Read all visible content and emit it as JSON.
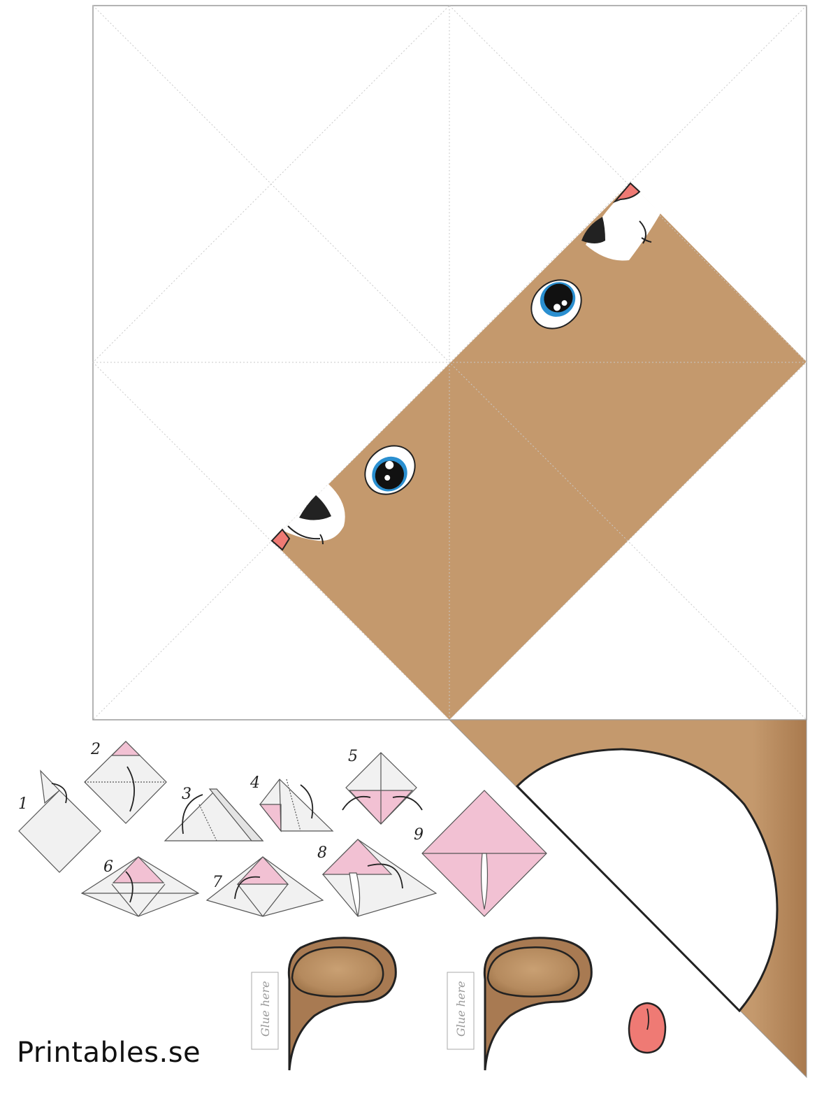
{
  "brand": "Printables.se",
  "glue_label": "Glue here",
  "steps": [
    "1",
    "2",
    "3",
    "4",
    "5",
    "6",
    "7",
    "8",
    "9"
  ],
  "colors": {
    "fur": "#c4996d",
    "fur_dark": "#a97a4e",
    "ear": "#a87a52",
    "ear_inner": "#c4996d",
    "pink": "#f2c1d3",
    "tongue": "#ef7a74",
    "iris": "#2a8fd0",
    "outline": "#222222",
    "fold_line": "#c8c8c8"
  },
  "icons": [
    "eye-icon",
    "nose-icon",
    "ear-icon",
    "tongue-icon",
    "curved-arrow-icon"
  ]
}
